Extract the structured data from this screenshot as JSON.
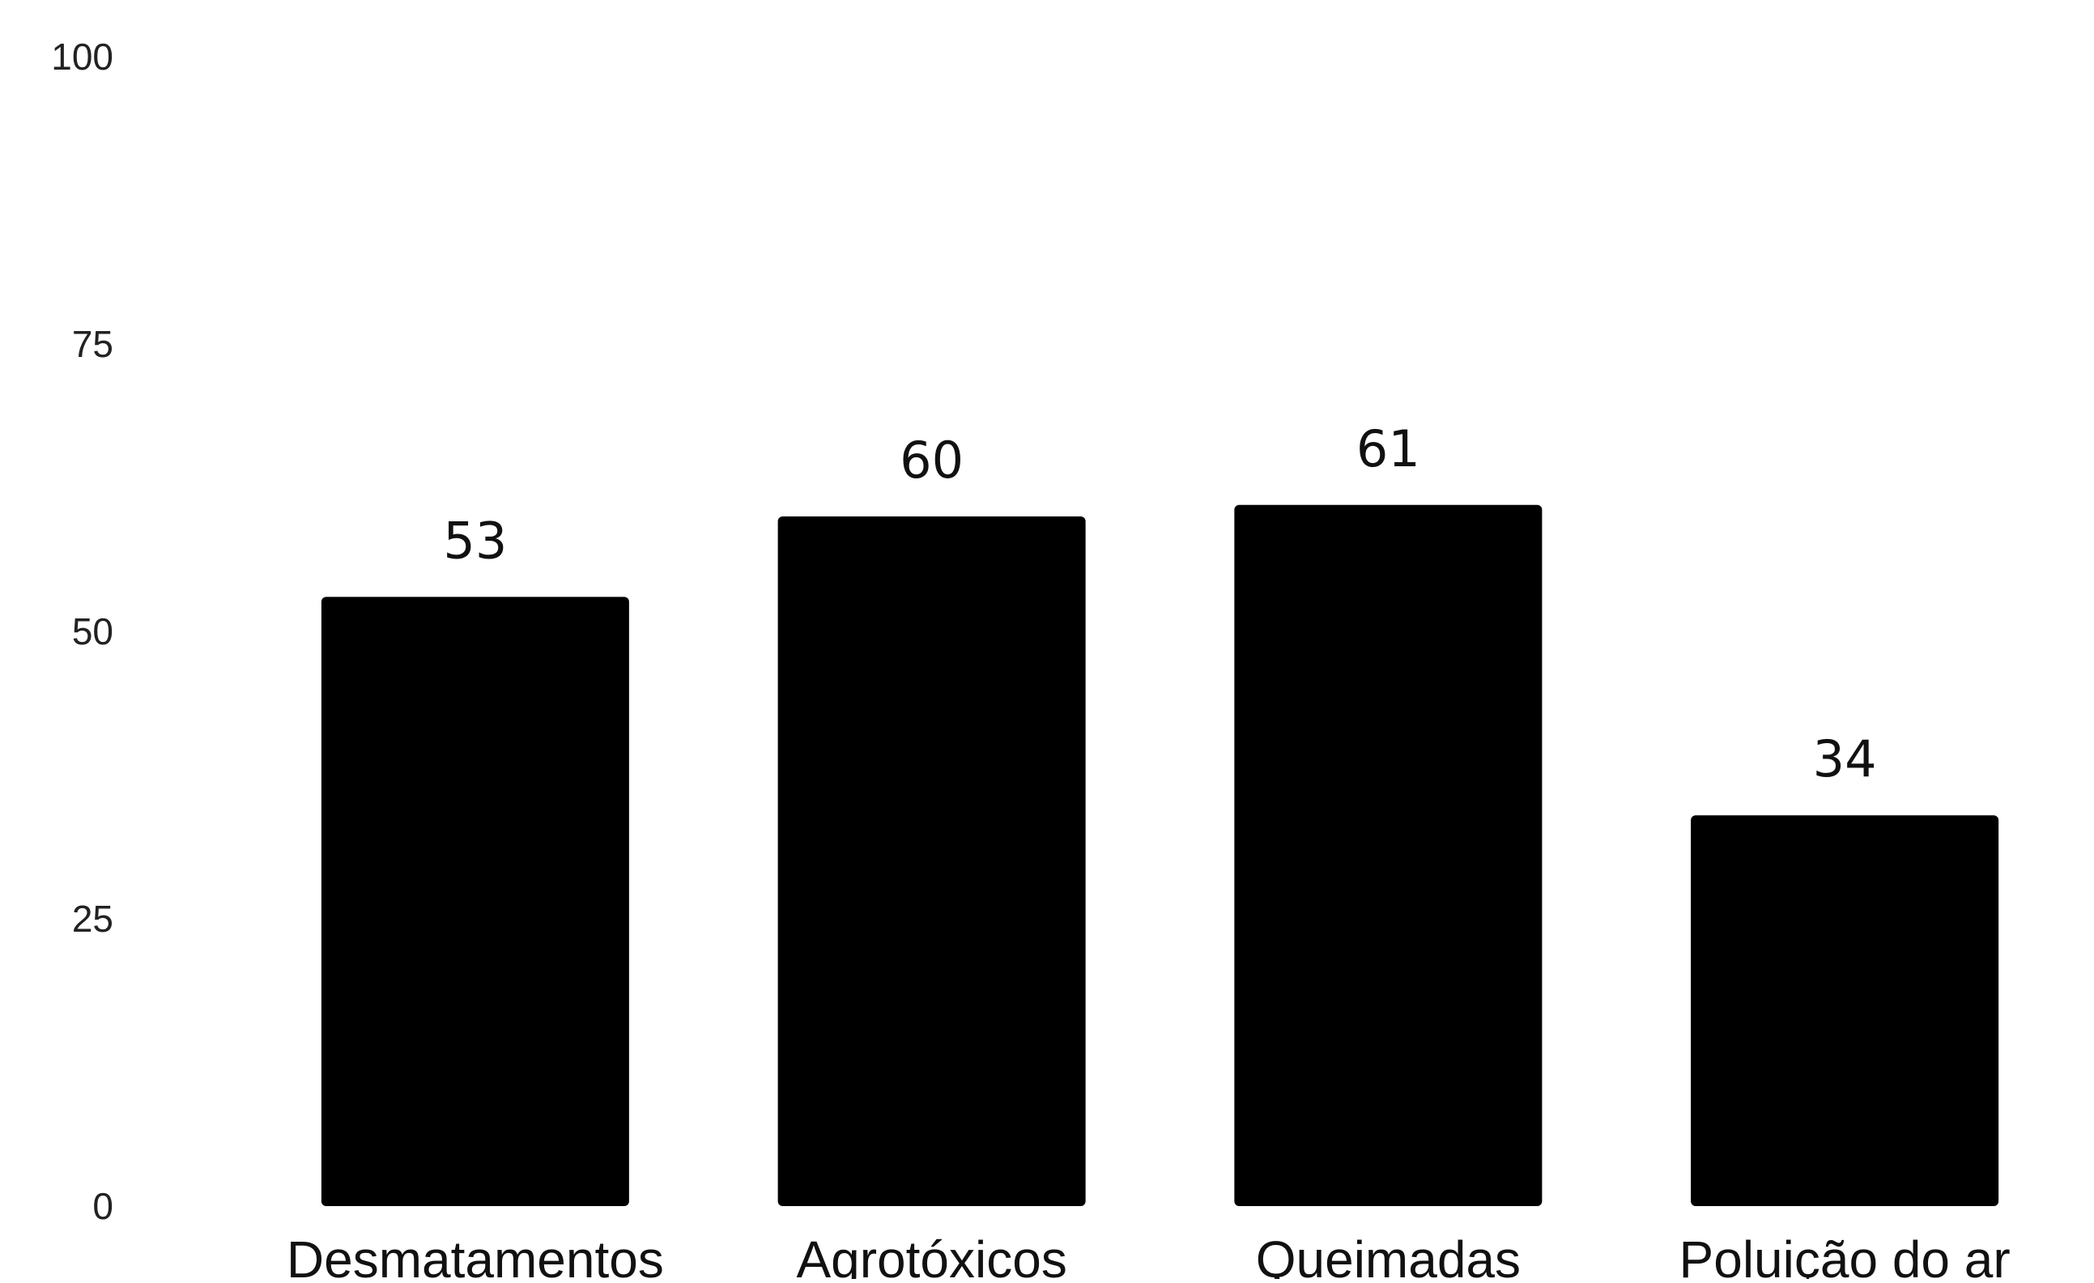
{
  "chart_data": {
    "type": "bar",
    "title": "",
    "xlabel": "",
    "ylabel": "",
    "categories": [
      "Desmatamentos",
      "Agrotóxicos",
      "Queimadas",
      "Poluição do ar"
    ],
    "values": [
      53,
      60,
      61,
      34
    ],
    "data_labels": [
      "53",
      "60",
      "61",
      "34"
    ],
    "ylim": [
      0,
      100
    ],
    "y_ticks": [
      0,
      25,
      50,
      75,
      100
    ],
    "y_tick_labels": [
      "0",
      "25",
      "50",
      "75",
      "100"
    ],
    "grid": false,
    "legend": "none",
    "bar_color": "#000000"
  }
}
